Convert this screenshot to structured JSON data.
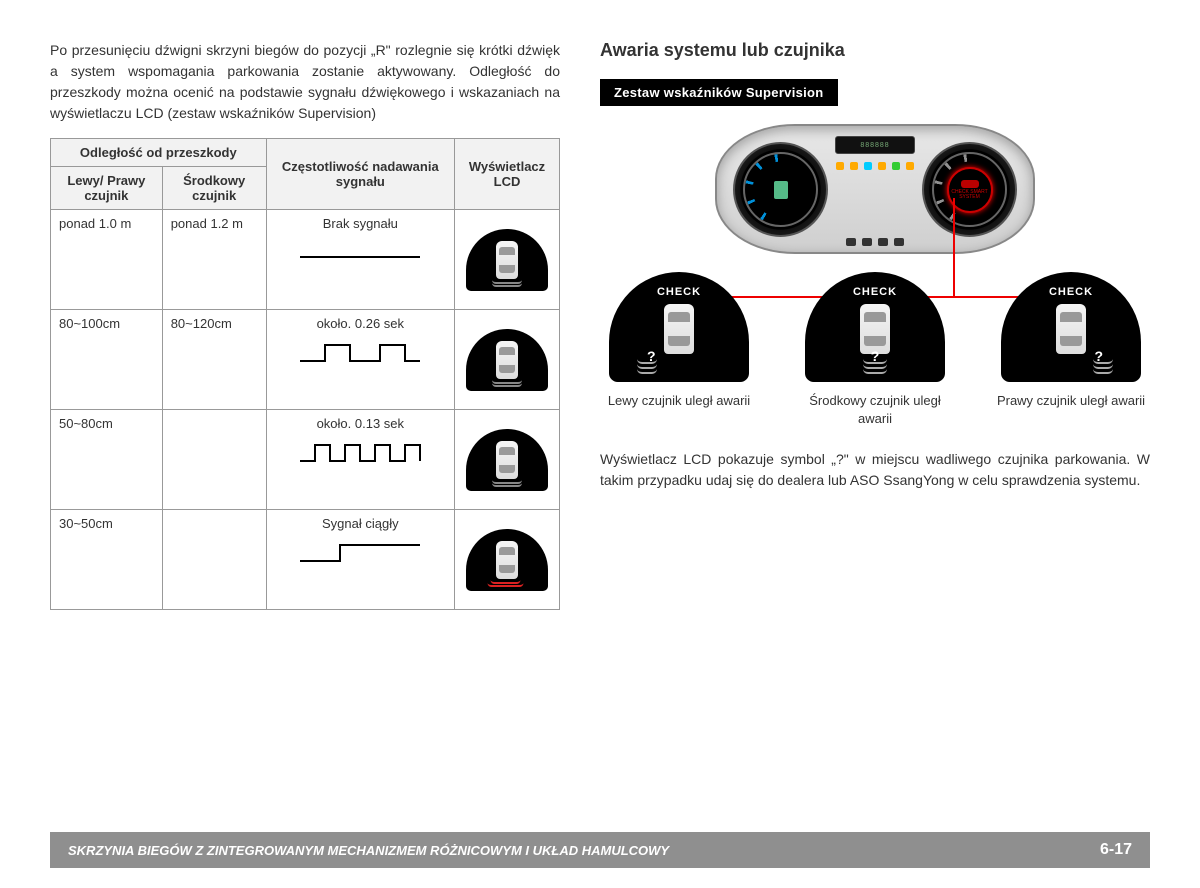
{
  "leftIntro": "Po przesunięciu dźwigni skrzyni biegów do pozycji „R\" rozlegnie się krótki dźwięk a system wspomagania parkowania zostanie aktywowany. Odległość do przeszkody można ocenić na podstawie sygnału dźwiękowego i wskazaniach na wyświetlaczu LCD (zestaw wskaźników Supervision)",
  "table": {
    "topHeaders": {
      "distance": "Odległość od przeszkody",
      "freq": "Częstotliwość nadawania sygnału",
      "lcd": "Wyświetlacz LCD"
    },
    "subHeaders": {
      "leftRight": "Lewy/ Prawy czujnik",
      "center": "Środkowy czujnik"
    },
    "rows": [
      {
        "lr": "ponad 1.0 m",
        "c": "ponad 1.2 m",
        "freq": "Brak sygnału",
        "wave": "flat"
      },
      {
        "lr": "80~100cm",
        "c": "80~120cm",
        "freq": "około. 0.26 sek",
        "wave": "wide"
      },
      {
        "lr": "50~80cm",
        "c": "",
        "freq": "około. 0.13 sek",
        "wave": "narrow"
      },
      {
        "lr": "30~50cm",
        "c": "",
        "freq": "Sygnał ciągły",
        "wave": "step"
      }
    ]
  },
  "right": {
    "title": "Awaria systemu lub czujnika",
    "supervision": "Zestaw wskaźników Supervision",
    "odometer": "888888",
    "checkSmart": "CHECK SMART SYSTEM",
    "check": "CHECK",
    "sensors": [
      {
        "label": "Lewy czujnik uległ awarii",
        "pos": "left"
      },
      {
        "label": "Środkowy czujnik uległ awarii",
        "pos": "mid"
      },
      {
        "label": "Prawy czujnik uległ awarii",
        "pos": "right"
      }
    ],
    "after": "Wyświetlacz LCD pokazuje symbol „?\" w miejscu wadliwego czujnika parkowania. W takim przypadku udaj się do dealera lub ASO SsangYong w celu sprawdzenia systemu."
  },
  "footer": {
    "text": "SKRZYNIA BIEGÓW Z ZINTEGROWANYM MECHANIZMEM RÓŻNICOWYM I UKŁAD HAMULCOWY",
    "page": "6-17"
  },
  "colors": {
    "red": "#e00000"
  }
}
